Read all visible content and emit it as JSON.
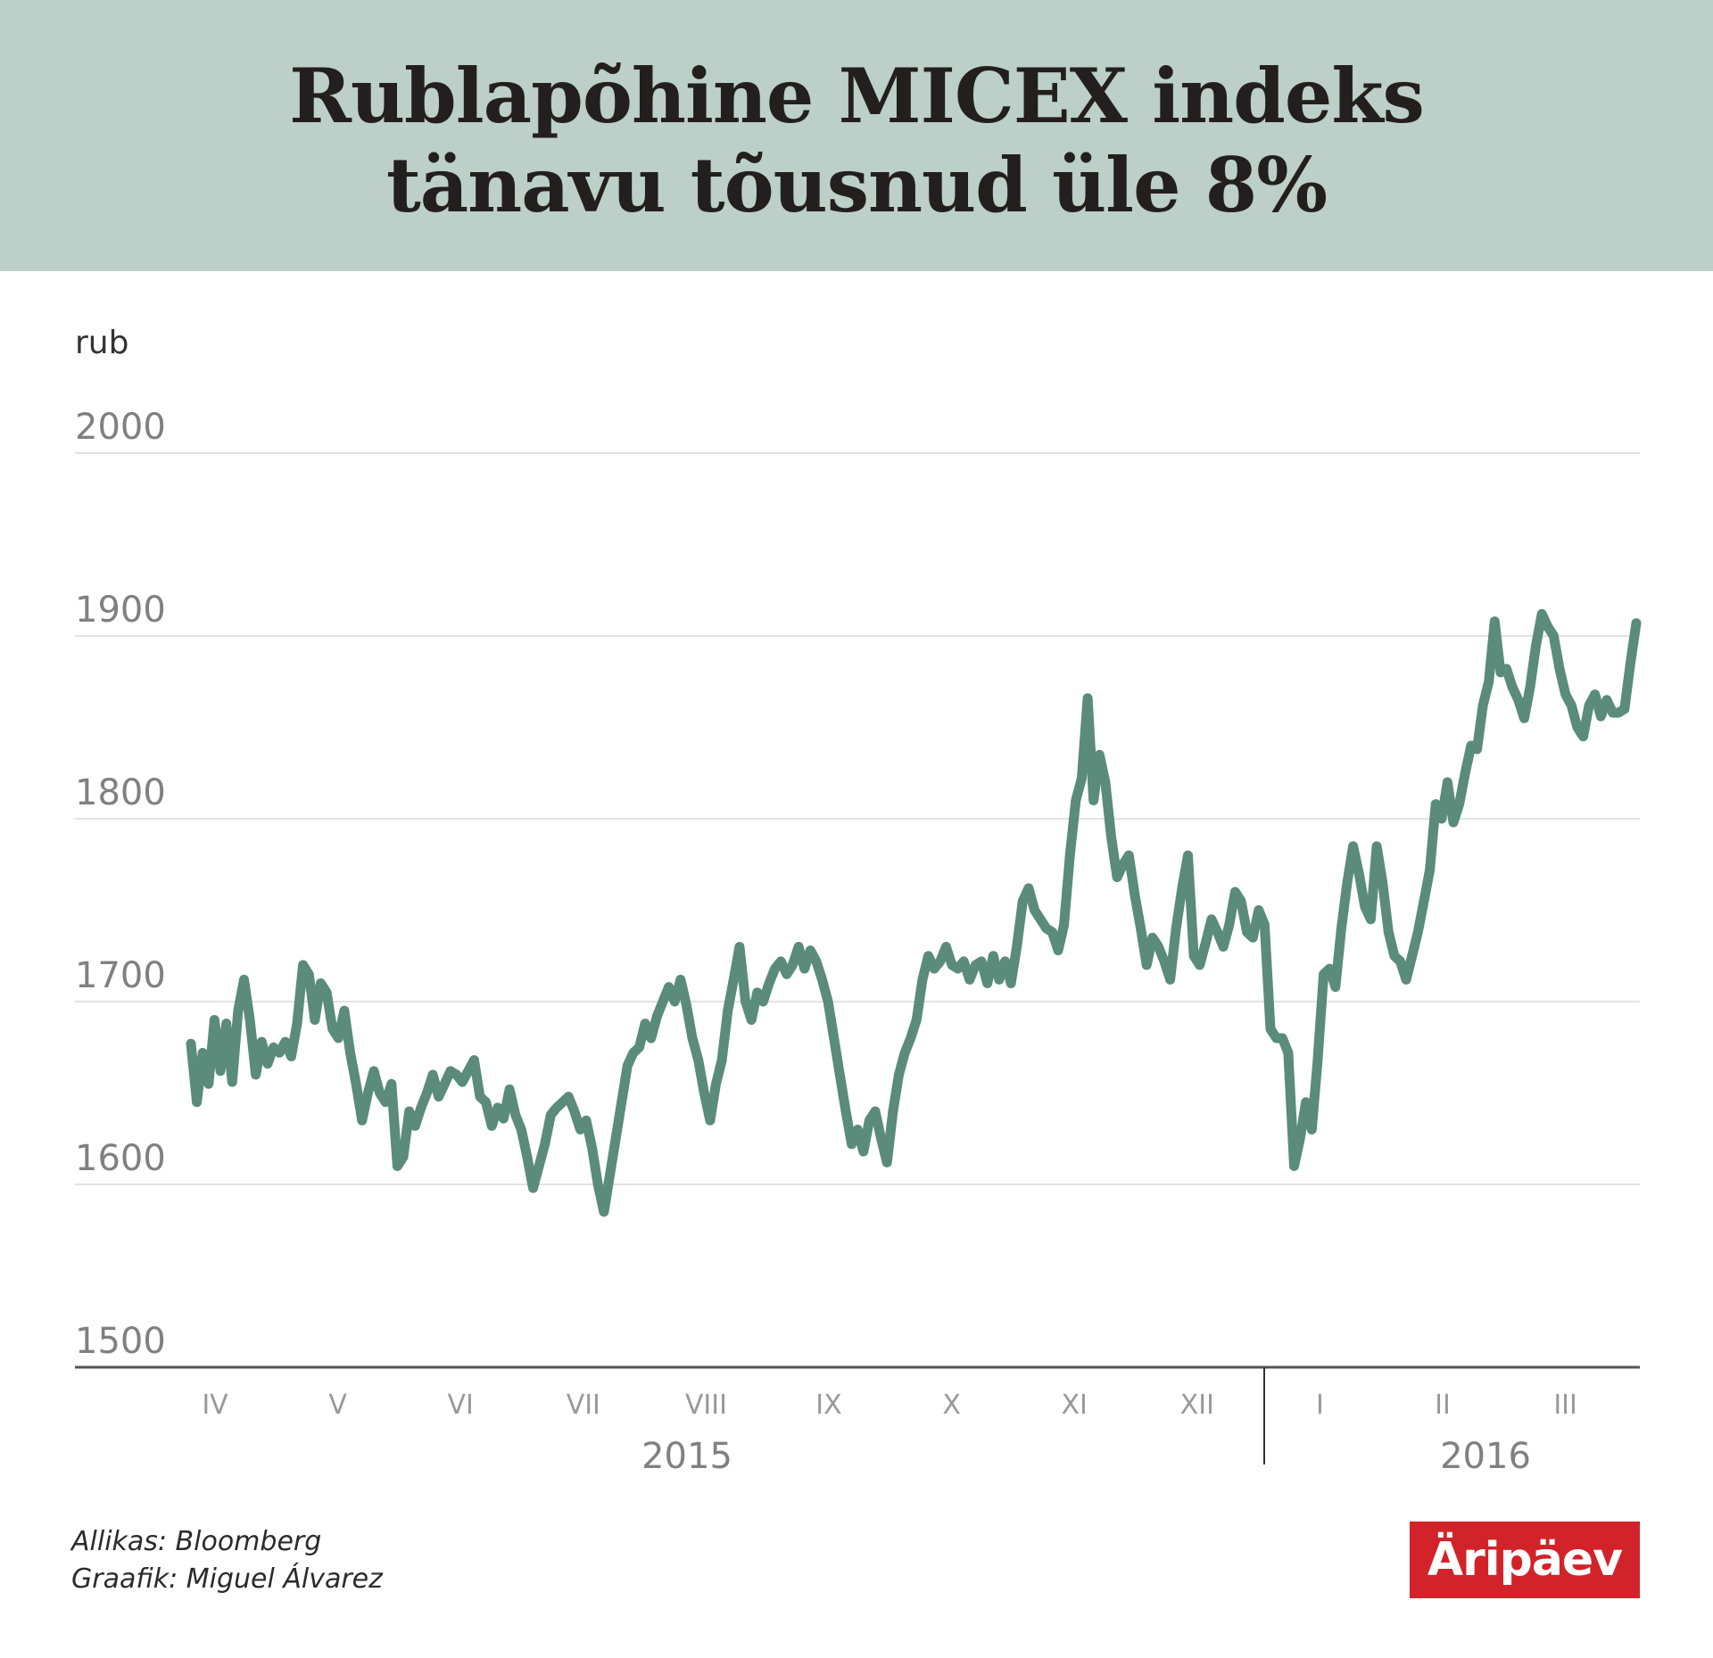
{
  "header": {
    "title_line1": "Rublapõhine MICEX indeks",
    "title_line2": "tänavu tõusnud üle 8%"
  },
  "chart_data": {
    "type": "line",
    "title": "Rublapõhine MICEX indeks tänavu tõusnud üle 8%",
    "ylabel": "rub",
    "xlabel": "",
    "ylim": [
      1500,
      2000
    ],
    "y_ticks": [
      2000,
      1900,
      1800,
      1700,
      1600,
      1500
    ],
    "grid": true,
    "month_labels": [
      "IV",
      "V",
      "VI",
      "VII",
      "VIII",
      "IX",
      "X",
      "XI",
      "XII",
      "I",
      "II",
      "III"
    ],
    "year_labels": [
      "2015",
      "2016"
    ],
    "line_color": "#5a8b7b",
    "series": [
      {
        "values": [
          1677,
          1645,
          1672,
          1655,
          1690,
          1662,
          1688,
          1656,
          1695,
          1712,
          1690,
          1660,
          1678,
          1666,
          1675,
          1672,
          1678,
          1670,
          1688,
          1720,
          1715,
          1690,
          1710,
          1705,
          1685,
          1680,
          1695,
          1672,
          1655,
          1635,
          1650,
          1662,
          1650,
          1645,
          1655,
          1610,
          1615,
          1640,
          1632,
          1642,
          1650,
          1660,
          1648,
          1655,
          1662,
          1660,
          1656,
          1662,
          1668,
          1648,
          1645,
          1632,
          1642,
          1636,
          1652,
          1638,
          1630,
          1615,
          1598,
          1610,
          1622,
          1638,
          1642,
          1645,
          1648,
          1640,
          1630,
          1635,
          1620,
          1600,
          1585,
          1605,
          1625,
          1645,
          1665,
          1672,
          1675,
          1688,
          1680,
          1692,
          1700,
          1708,
          1700,
          1712,
          1698,
          1680,
          1668,
          1650,
          1635,
          1655,
          1668,
          1695,
          1712,
          1730,
          1700,
          1690,
          1705,
          1700,
          1710,
          1718,
          1722,
          1715,
          1720,
          1730,
          1718,
          1728,
          1722,
          1712,
          1700,
          1680,
          1660,
          1640,
          1622,
          1630,
          1618,
          1635,
          1640,
          1625,
          1612,
          1640,
          1660,
          1672,
          1680,
          1690,
          1712,
          1725,
          1718,
          1722,
          1730,
          1720,
          1718,
          1722,
          1712,
          1720,
          1722,
          1710,
          1725,
          1712,
          1722,
          1710,
          1730,
          1755,
          1762,
          1750,
          1745,
          1740,
          1738,
          1728,
          1742,
          1780,
          1810,
          1822,
          1866,
          1810,
          1835,
          1820,
          1790,
          1768,
          1775,
          1780,
          1758,
          1740,
          1720,
          1735,
          1730,
          1722,
          1712,
          1740,
          1762,
          1780,
          1725,
          1720,
          1732,
          1745,
          1738,
          1730,
          1742,
          1760,
          1755,
          1738,
          1735,
          1750,
          1742,
          1685,
          1680,
          1680,
          1672,
          1610,
          1625,
          1645,
          1630,
          1668,
          1715,
          1718,
          1708,
          1740,
          1765,
          1785,
          1770,
          1752,
          1745,
          1785,
          1765,
          1738,
          1725,
          1722,
          1712,
          1725,
          1738,
          1755,
          1772,
          1808,
          1800,
          1820,
          1798,
          1808,
          1825,
          1840,
          1838,
          1862,
          1875,
          1908,
          1880,
          1882,
          1872,
          1865,
          1855,
          1872,
          1895,
          1912,
          1905,
          1900,
          1882,
          1868,
          1862,
          1850,
          1845,
          1862,
          1868,
          1856,
          1865,
          1858,
          1858,
          1860,
          1885,
          1907
        ]
      }
    ]
  },
  "source": {
    "line1": "Allikas: Bloomberg",
    "line2": "Graafik: Miguel Álvarez"
  },
  "logo": {
    "text": "Äripäev"
  }
}
